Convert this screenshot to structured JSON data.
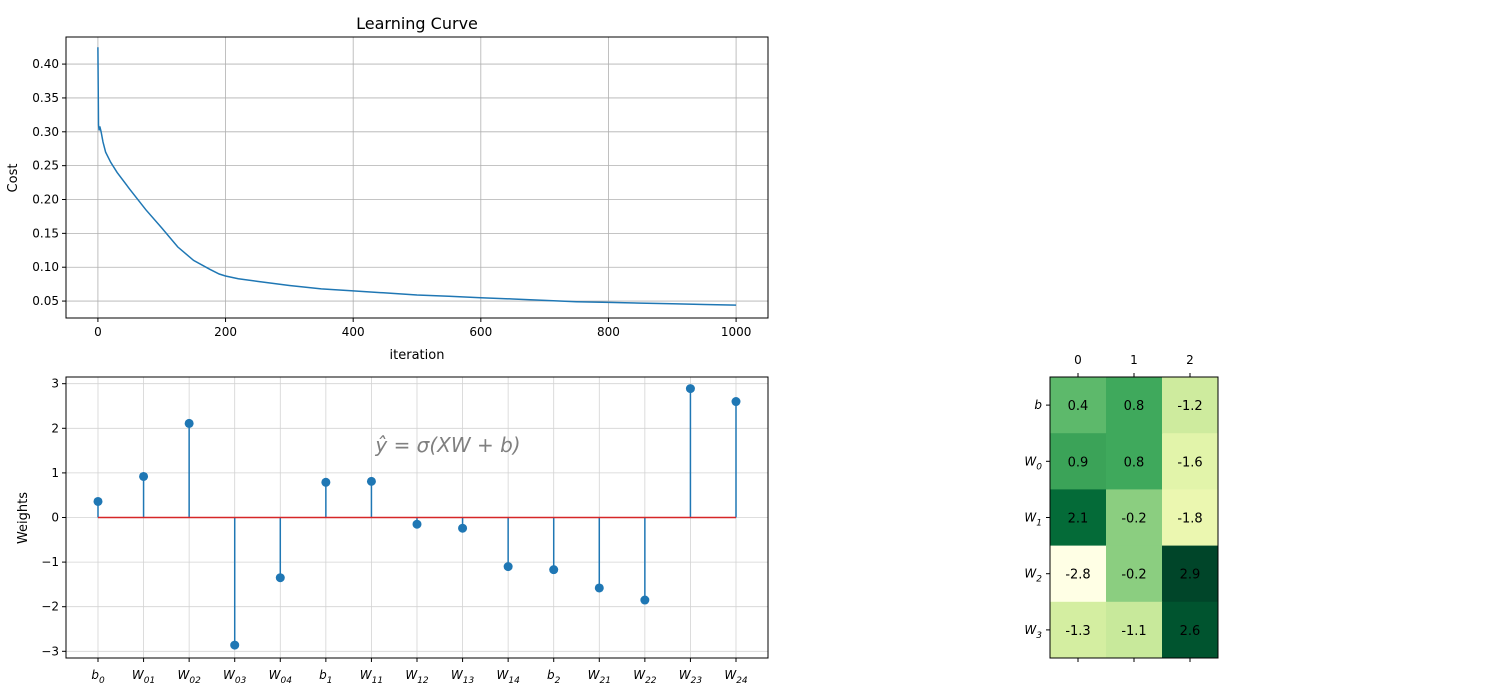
{
  "chart_data": [
    {
      "type": "line",
      "title": "Learning Curve",
      "xlabel": "iteration",
      "ylabel": "Cost",
      "xlim": [
        -50,
        1050
      ],
      "ylim": [
        0.025,
        0.44
      ],
      "xticks": [
        0,
        200,
        400,
        600,
        800,
        1000
      ],
      "yticks": [
        0.05,
        0.1,
        0.15,
        0.2,
        0.25,
        0.3,
        0.35,
        0.4
      ],
      "grid": true,
      "color": "#1f77b4",
      "series": [
        {
          "x": [
            0,
            1,
            2,
            3,
            5,
            8,
            12,
            20,
            30,
            50,
            75,
            100,
            125,
            150,
            175,
            190,
            200,
            220,
            250,
            300,
            350,
            400,
            450,
            500,
            550,
            600,
            650,
            700,
            750,
            800,
            850,
            900,
            950,
            1000
          ],
          "y": [
            0.425,
            0.31,
            0.302,
            0.308,
            0.3,
            0.285,
            0.27,
            0.255,
            0.24,
            0.215,
            0.185,
            0.158,
            0.13,
            0.11,
            0.097,
            0.09,
            0.087,
            0.083,
            0.079,
            0.073,
            0.068,
            0.065,
            0.062,
            0.059,
            0.057,
            0.055,
            0.053,
            0.051,
            0.049,
            0.048,
            0.047,
            0.046,
            0.045,
            0.044
          ]
        }
      ]
    },
    {
      "type": "stem",
      "ylabel": "Weights",
      "annotation": "ŷ = σ(XW + b)",
      "ylim": [
        -3.15,
        3.15
      ],
      "yticks": [
        -3,
        -2,
        -1,
        0,
        1,
        2,
        3
      ],
      "ytick_labels": [
        "−3",
        "−2",
        "−1",
        "0",
        "1",
        "2",
        "3"
      ],
      "grid": true,
      "stem_color": "#1f77b4",
      "baseline_color": "#d62728",
      "categories": [
        {
          "base": "b",
          "sub": "0"
        },
        {
          "base": "W",
          "sub": "01"
        },
        {
          "base": "W",
          "sub": "02"
        },
        {
          "base": "W",
          "sub": "03"
        },
        {
          "base": "W",
          "sub": "04"
        },
        {
          "base": "b",
          "sub": "1"
        },
        {
          "base": "W",
          "sub": "11"
        },
        {
          "base": "W",
          "sub": "12"
        },
        {
          "base": "W",
          "sub": "13"
        },
        {
          "base": "W",
          "sub": "14"
        },
        {
          "base": "b",
          "sub": "2"
        },
        {
          "base": "W",
          "sub": "21"
        },
        {
          "base": "W",
          "sub": "22"
        },
        {
          "base": "W",
          "sub": "23"
        },
        {
          "base": "W",
          "sub": "24"
        }
      ],
      "values": [
        0.36,
        0.92,
        2.11,
        -2.86,
        -1.35,
        0.79,
        0.81,
        -0.15,
        -0.24,
        -1.1,
        -1.17,
        -1.58,
        -1.85,
        2.89,
        2.6
      ]
    },
    {
      "type": "heatmap",
      "colormap": "YlGn",
      "vmin": -2.8,
      "vmax": 2.9,
      "col_labels": [
        "0",
        "1",
        "2"
      ],
      "row_labels": [
        {
          "base": "b",
          "sub": ""
        },
        {
          "base": "W",
          "sub": "0"
        },
        {
          "base": "W",
          "sub": "1"
        },
        {
          "base": "W",
          "sub": "2"
        },
        {
          "base": "W",
          "sub": "3"
        }
      ],
      "values": [
        [
          0.4,
          0.8,
          -1.2
        ],
        [
          0.9,
          0.8,
          -1.6
        ],
        [
          2.1,
          -0.2,
          -1.8
        ],
        [
          -2.8,
          -0.2,
          2.9
        ],
        [
          -1.3,
          -1.1,
          2.6
        ]
      ],
      "cell_labels": [
        [
          "0.4",
          "0.8",
          "-1.2"
        ],
        [
          "0.9",
          "0.8",
          "-1.6"
        ],
        [
          "2.1",
          "-0.2",
          "-1.8"
        ],
        [
          "-2.8",
          "-0.2",
          "2.9"
        ],
        [
          "-1.3",
          "-1.1",
          "2.6"
        ]
      ]
    }
  ]
}
